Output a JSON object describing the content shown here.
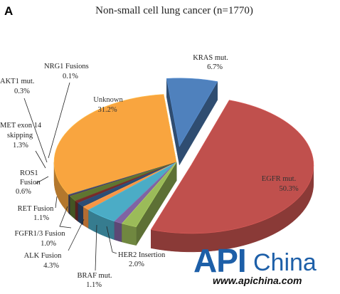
{
  "panel_label": "A",
  "chart_data": {
    "type": "pie",
    "title": "Non-small cell lung cancer (n=1770)",
    "style": "3d-exploded",
    "slices": [
      {
        "label": "KRAS mut.",
        "value": 6.7,
        "value_label": "6.7%",
        "color": "#4f81bd"
      },
      {
        "label": "EGFR mut.",
        "value": 50.3,
        "value_label": "50.3%",
        "color": "#c0504d"
      },
      {
        "label": "HER2 Insertion",
        "value": 2.0,
        "value_label": "2.0%",
        "color": "#9bbb59"
      },
      {
        "label": "BRAF mut.",
        "value": 1.1,
        "value_label": "1.1%",
        "color": "#8064a2"
      },
      {
        "label": "ALK Fusion",
        "value": 4.3,
        "value_label": "4.3%",
        "color": "#4bacc6"
      },
      {
        "label": "FGFR1/3 Fusion",
        "value": 1.0,
        "value_label": "1.0%",
        "color": "#f79646"
      },
      {
        "label": "RET Fusion",
        "value": 1.1,
        "value_label": "1.1%",
        "color": "#2c4d75"
      },
      {
        "label": "ROS1 Fusion",
        "value": 0.6,
        "value_label": "0.6%",
        "color": "#772c2a"
      },
      {
        "label": "MET exon 14 skipping",
        "value": 1.3,
        "value_label": "1.3%",
        "color": "#5f7530"
      },
      {
        "label": "AKT1 mut.",
        "value": 0.3,
        "value_label": "0.3%",
        "color": "#4d3b62"
      },
      {
        "label": "NRG1 Fusions",
        "value": 0.1,
        "value_label": "0.1%",
        "color": "#276a7c"
      },
      {
        "label": "Unknown",
        "value": 31.2,
        "value_label": "31.2%",
        "color": "#f9a53f"
      }
    ]
  },
  "watermark": {
    "brand": "API",
    "brand_suffix": "China",
    "url": "www.apichina.com"
  }
}
